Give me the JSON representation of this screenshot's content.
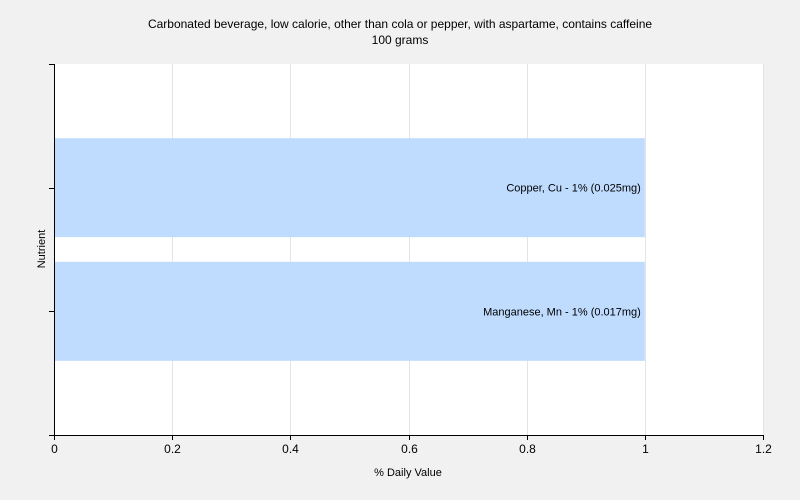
{
  "chart_data": {
    "type": "bar",
    "orientation": "horizontal",
    "title": "Carbonated beverage, low calorie, other than cola or pepper, with aspartame, contains caffeine",
    "subtitle": "100 grams",
    "xlabel": "% Daily Value",
    "ylabel": "Nutrient",
    "xlim": [
      0,
      1.2
    ],
    "xticks": [
      "0",
      "0.2",
      "0.4",
      "0.6",
      "0.8",
      "1",
      "1.2"
    ],
    "grid": true,
    "categories": [
      "Copper, Cu",
      "Manganese, Mn"
    ],
    "values": [
      1,
      1
    ],
    "labels": [
      "Copper, Cu - 1% (0.025mg)",
      "Manganese, Mn - 1% (0.017mg)"
    ],
    "bar_color": "#bfdcff"
  }
}
